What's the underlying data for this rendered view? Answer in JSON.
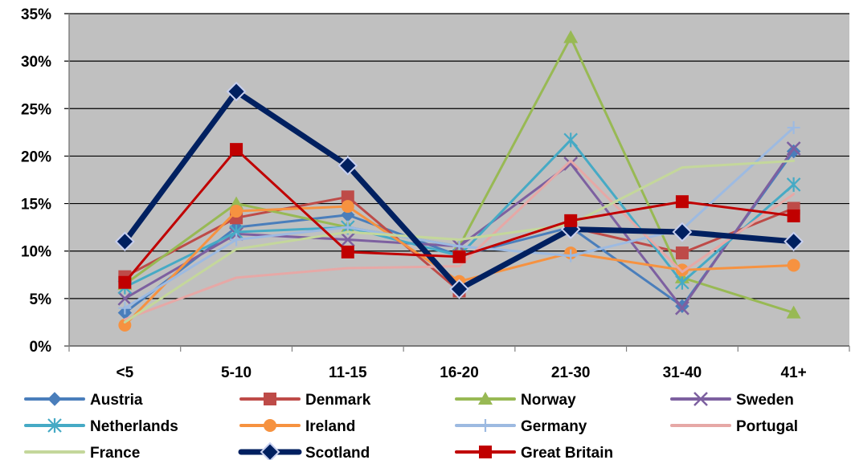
{
  "chart_data": {
    "type": "line",
    "categories": [
      "<5",
      "5-10",
      "11-15",
      "16-20",
      "21-30",
      "31-40",
      "41+"
    ],
    "ylim": [
      0,
      35
    ],
    "yticks": [
      0,
      5,
      10,
      15,
      20,
      25,
      30,
      35
    ],
    "ytick_labels": [
      "0%",
      "5%",
      "10%",
      "15%",
      "20%",
      "25%",
      "30%",
      "35%"
    ],
    "grid": true,
    "plot_background": "#c0c0c0",
    "legend_position": "bottom",
    "series": [
      {
        "name": "Austria",
        "color": "#4a7ebb",
        "marker": "diamond",
        "width": 3,
        "values": [
          3.5,
          12.5,
          13.8,
          9.5,
          12.5,
          4.2,
          20.5
        ]
      },
      {
        "name": "Denmark",
        "color": "#be4b48",
        "marker": "square",
        "width": 3,
        "values": [
          7.3,
          13.5,
          15.7,
          5.8,
          12.5,
          9.8,
          14.5
        ]
      },
      {
        "name": "Norway",
        "color": "#98b954",
        "marker": "triangle",
        "width": 3,
        "values": [
          6.5,
          15.0,
          12.5,
          10.5,
          32.5,
          7.2,
          3.5
        ]
      },
      {
        "name": "Sweden",
        "color": "#7d60a0",
        "marker": "x",
        "width": 3,
        "values": [
          5.0,
          11.8,
          11.2,
          10.5,
          19.2,
          4.0,
          20.8
        ]
      },
      {
        "name": "Netherlands",
        "color": "#46aac5",
        "marker": "star",
        "width": 3,
        "values": [
          6.2,
          12.0,
          12.5,
          9.5,
          21.7,
          6.7,
          17.0
        ]
      },
      {
        "name": "Ireland",
        "color": "#f69240",
        "marker": "circle",
        "width": 3,
        "values": [
          2.2,
          14.2,
          14.7,
          6.8,
          9.8,
          8.0,
          8.5
        ]
      },
      {
        "name": "Germany",
        "color": "#9dbae1",
        "marker": "plus",
        "width": 3,
        "values": [
          4.0,
          11.2,
          12.5,
          10.5,
          9.5,
          12.3,
          23.0
        ]
      },
      {
        "name": "Portugal",
        "color": "#e6a8a6",
        "marker": "none",
        "width": 3,
        "values": [
          2.8,
          7.2,
          8.2,
          8.4,
          19.5,
          7.8,
          16.0
        ]
      },
      {
        "name": "France",
        "color": "#c4d79b",
        "marker": "none",
        "width": 3,
        "values": [
          2.5,
          10.2,
          12.0,
          11.2,
          12.8,
          18.8,
          19.5
        ]
      },
      {
        "name": "Scotland",
        "color": "#002060",
        "marker": "diamond",
        "width": 7,
        "values": [
          11.0,
          26.8,
          19.0,
          6.0,
          12.3,
          12.0,
          11.0
        ]
      },
      {
        "name": "Great Britain",
        "color": "#c00000",
        "marker": "square",
        "width": 3,
        "values": [
          6.7,
          20.7,
          9.9,
          9.4,
          13.2,
          15.2,
          13.7
        ]
      }
    ]
  }
}
